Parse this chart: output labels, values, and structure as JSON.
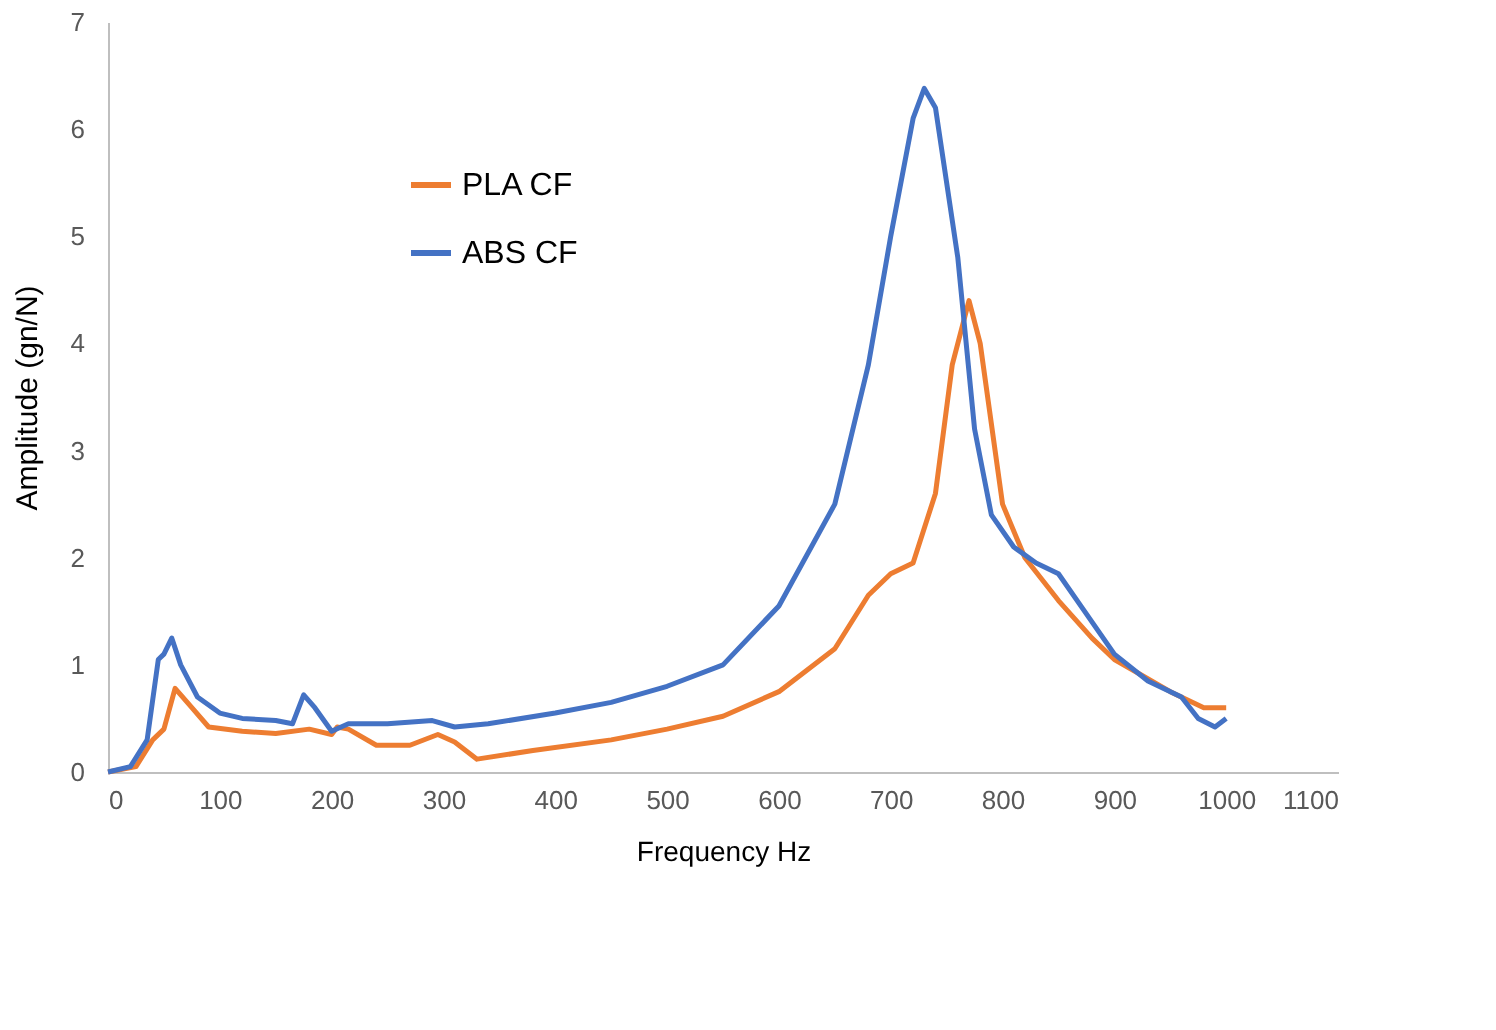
{
  "chart_data": {
    "type": "line",
    "xlabel": "Frequency Hz",
    "ylabel": "Amplitude (gn/N)",
    "xlim": [
      0,
      1100
    ],
    "xticks": [
      0,
      100,
      200,
      300,
      400,
      500,
      600,
      700,
      800,
      900,
      1000,
      1100
    ],
    "ylim": [
      0,
      7
    ],
    "yticks": [
      0,
      1,
      2,
      3,
      4,
      5,
      6,
      7
    ],
    "grid": false,
    "legend": "top left",
    "marker": "none",
    "line_style": "solid",
    "series": [
      {
        "name": "PLA CF",
        "color": "#ed7d31",
        "x": [
          0,
          25,
          40,
          50,
          60,
          75,
          90,
          120,
          150,
          180,
          200,
          205,
          215,
          240,
          270,
          295,
          310,
          330,
          380,
          450,
          500,
          550,
          600,
          650,
          680,
          700,
          720,
          740,
          755,
          770,
          780,
          800,
          820,
          850,
          880,
          900,
          950,
          980,
          1000
        ],
        "values": [
          0,
          0.05,
          0.3,
          0.4,
          0.78,
          0.6,
          0.42,
          0.38,
          0.36,
          0.4,
          0.35,
          0.42,
          0.4,
          0.25,
          0.25,
          0.35,
          0.28,
          0.12,
          0.2,
          0.3,
          0.4,
          0.52,
          0.75,
          1.15,
          1.65,
          1.85,
          1.95,
          2.6,
          3.8,
          4.4,
          4.0,
          2.5,
          2.0,
          1.6,
          1.25,
          1.05,
          0.75,
          0.6,
          0.6
        ]
      },
      {
        "name": "ABS CF",
        "color": "#4472c4",
        "x": [
          0,
          20,
          35,
          45,
          50,
          57,
          65,
          80,
          100,
          120,
          150,
          165,
          175,
          185,
          200,
          215,
          250,
          290,
          310,
          340,
          400,
          450,
          500,
          550,
          600,
          650,
          680,
          700,
          720,
          730,
          740,
          760,
          775,
          790,
          810,
          830,
          850,
          870,
          900,
          930,
          960,
          975,
          990,
          1000
        ],
        "values": [
          0,
          0.05,
          0.3,
          1.05,
          1.1,
          1.25,
          1.0,
          0.7,
          0.55,
          0.5,
          0.48,
          0.45,
          0.72,
          0.6,
          0.38,
          0.45,
          0.45,
          0.48,
          0.42,
          0.45,
          0.55,
          0.65,
          0.8,
          1.0,
          1.55,
          2.5,
          3.8,
          5.0,
          6.1,
          6.38,
          6.2,
          4.8,
          3.2,
          2.4,
          2.1,
          1.95,
          1.85,
          1.55,
          1.1,
          0.85,
          0.7,
          0.5,
          0.42,
          0.5
        ]
      }
    ]
  }
}
